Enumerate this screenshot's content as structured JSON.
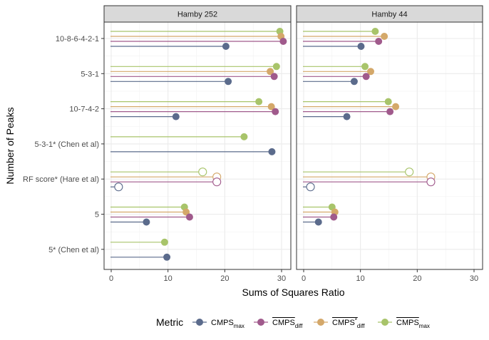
{
  "chart_data": {
    "type": "lollipop",
    "xlabel": "Sums of Squares Ratio",
    "ylabel": "Number of Peaks",
    "xlim": [
      0,
      30
    ],
    "xticks": [
      0,
      10,
      20,
      30
    ],
    "grid": true,
    "legend_placement": "bottom",
    "legend_title": "Metric",
    "categories": [
      "10-8-6-4-2-1",
      "5-3-1",
      "10-7-4-2",
      "5-3-1* (Chen et al)",
      "RF score* (Hare et al)",
      "5",
      "5* (Chen et al)"
    ],
    "metrics": [
      {
        "key": "cmps_max",
        "base": "CMPS",
        "sub": "max",
        "star": false,
        "overline": false,
        "color": "#5B6B8C"
      },
      {
        "key": "cmps_diff_bar",
        "base": "CMPS",
        "sub": "diff",
        "star": false,
        "overline": true,
        "color": "#A05A8C"
      },
      {
        "key": "cmps_star_diff_bar",
        "base": "CMPS",
        "sub": "diff",
        "star": true,
        "overline": true,
        "color": "#D4A86A"
      },
      {
        "key": "cmps_max_bar",
        "base": "CMPS",
        "sub": "max",
        "star": false,
        "overline": true,
        "color": "#A8C46A"
      }
    ],
    "panels": [
      {
        "title": "Hamby 252",
        "rows": [
          {
            "category": "10-8-6-4-2-1",
            "values": [
              {
                "metric": "cmps_max_bar",
                "value": 29.7,
                "filled": true
              },
              {
                "metric": "cmps_star_diff_bar",
                "value": 29.9,
                "filled": true
              },
              {
                "metric": "cmps_diff_bar",
                "value": 30.3,
                "filled": true
              },
              {
                "metric": "cmps_max",
                "value": 20.2,
                "filled": true
              }
            ]
          },
          {
            "category": "5-3-1",
            "values": [
              {
                "metric": "cmps_max_bar",
                "value": 29.1,
                "filled": true
              },
              {
                "metric": "cmps_star_diff_bar",
                "value": 28.0,
                "filled": true
              },
              {
                "metric": "cmps_diff_bar",
                "value": 28.7,
                "filled": true
              },
              {
                "metric": "cmps_max",
                "value": 20.6,
                "filled": true
              }
            ]
          },
          {
            "category": "10-7-4-2",
            "values": [
              {
                "metric": "cmps_max_bar",
                "value": 26.0,
                "filled": true
              },
              {
                "metric": "cmps_star_diff_bar",
                "value": 28.2,
                "filled": true
              },
              {
                "metric": "cmps_diff_bar",
                "value": 28.9,
                "filled": true
              },
              {
                "metric": "cmps_max",
                "value": 11.4,
                "filled": true
              }
            ]
          },
          {
            "category": "5-3-1* (Chen et al)",
            "values": [
              {
                "metric": "cmps_max_bar",
                "value": 23.4,
                "filled": true
              },
              {
                "metric": "cmps_max",
                "value": 28.3,
                "filled": true
              }
            ]
          },
          {
            "category": "RF score* (Hare et al)",
            "values": [
              {
                "metric": "cmps_max_bar",
                "value": 16.1,
                "filled": false
              },
              {
                "metric": "cmps_star_diff_bar",
                "value": 18.6,
                "filled": false
              },
              {
                "metric": "cmps_diff_bar",
                "value": 18.6,
                "filled": false
              },
              {
                "metric": "cmps_max",
                "value": 1.3,
                "filled": false
              }
            ]
          },
          {
            "category": "5",
            "values": [
              {
                "metric": "cmps_max_bar",
                "value": 12.9,
                "filled": true
              },
              {
                "metric": "cmps_star_diff_bar",
                "value": 13.2,
                "filled": true
              },
              {
                "metric": "cmps_diff_bar",
                "value": 13.8,
                "filled": true
              },
              {
                "metric": "cmps_max",
                "value": 6.2,
                "filled": true
              }
            ]
          },
          {
            "category": "5* (Chen et al)",
            "values": [
              {
                "metric": "cmps_max_bar",
                "value": 9.4,
                "filled": true
              },
              {
                "metric": "cmps_max",
                "value": 9.8,
                "filled": true
              }
            ]
          }
        ]
      },
      {
        "title": "Hamby 44",
        "rows": [
          {
            "category": "10-8-6-4-2-1",
            "values": [
              {
                "metric": "cmps_max_bar",
                "value": 12.6,
                "filled": true
              },
              {
                "metric": "cmps_star_diff_bar",
                "value": 14.2,
                "filled": true
              },
              {
                "metric": "cmps_diff_bar",
                "value": 13.2,
                "filled": true
              },
              {
                "metric": "cmps_max",
                "value": 10.1,
                "filled": true
              }
            ]
          },
          {
            "category": "5-3-1",
            "values": [
              {
                "metric": "cmps_max_bar",
                "value": 10.8,
                "filled": true
              },
              {
                "metric": "cmps_star_diff_bar",
                "value": 11.8,
                "filled": true
              },
              {
                "metric": "cmps_diff_bar",
                "value": 11.0,
                "filled": true
              },
              {
                "metric": "cmps_max",
                "value": 8.9,
                "filled": true
              }
            ]
          },
          {
            "category": "10-7-4-2",
            "values": [
              {
                "metric": "cmps_max_bar",
                "value": 14.9,
                "filled": true
              },
              {
                "metric": "cmps_star_diff_bar",
                "value": 16.2,
                "filled": true
              },
              {
                "metric": "cmps_diff_bar",
                "value": 15.2,
                "filled": true
              },
              {
                "metric": "cmps_max",
                "value": 7.6,
                "filled": true
              }
            ]
          },
          {
            "category": "5-3-1* (Chen et al)",
            "values": []
          },
          {
            "category": "RF score* (Hare et al)",
            "values": [
              {
                "metric": "cmps_max_bar",
                "value": 18.6,
                "filled": false
              },
              {
                "metric": "cmps_star_diff_bar",
                "value": 22.4,
                "filled": false
              },
              {
                "metric": "cmps_diff_bar",
                "value": 22.4,
                "filled": false
              },
              {
                "metric": "cmps_max",
                "value": 1.2,
                "filled": false
              }
            ]
          },
          {
            "category": "5",
            "values": [
              {
                "metric": "cmps_max_bar",
                "value": 5.0,
                "filled": true
              },
              {
                "metric": "cmps_star_diff_bar",
                "value": 5.5,
                "filled": true
              },
              {
                "metric": "cmps_diff_bar",
                "value": 5.3,
                "filled": true
              },
              {
                "metric": "cmps_max",
                "value": 2.6,
                "filled": true
              }
            ]
          },
          {
            "category": "5* (Chen et al)",
            "values": []
          }
        ]
      }
    ]
  }
}
